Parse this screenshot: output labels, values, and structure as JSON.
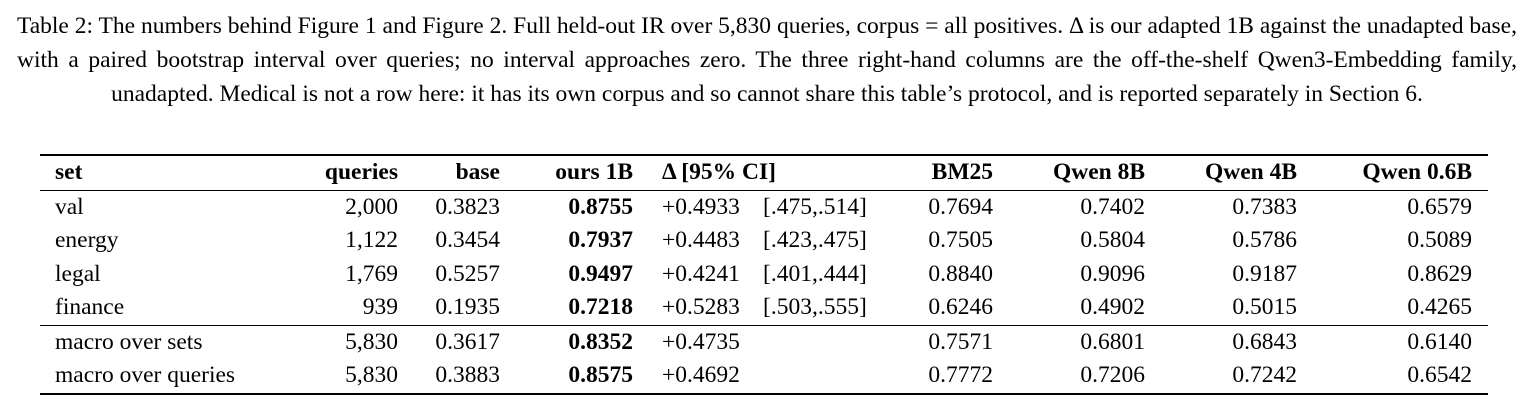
{
  "caption": "Table 2: The numbers behind Figure 1 and Figure 2. Full held-out IR over 5,830 queries, corpus = all positives. Δ is our adapted 1B against the unadapted base, with a paired bootstrap interval over queries; no interval approaches zero. The three right-hand columns are the off-the-shelf Qwen3-Embedding family, unadapted. Medical is not a row here: it has its own corpus and so cannot share this table’s protocol, and is reported separately in Section 6.",
  "table": {
    "header": [
      "set",
      "queries",
      "base",
      "ours 1B",
      "Δ [95% CI]",
      "BM25",
      "Qwen 8B",
      "Qwen 4B",
      "Qwen 0.6B"
    ],
    "groups": [
      [
        {
          "set": "val",
          "queries": "2,000",
          "base": "0.3823",
          "ours": "0.8755",
          "delta": "+0.4933",
          "ci": "[.475,.514]",
          "bm25": "0.7694",
          "qwen8b": "0.7402",
          "qwen4b": "0.7383",
          "qwen06b": "0.6579"
        },
        {
          "set": "energy",
          "queries": "1,122",
          "base": "0.3454",
          "ours": "0.7937",
          "delta": "+0.4483",
          "ci": "[.423,.475]",
          "bm25": "0.7505",
          "qwen8b": "0.5804",
          "qwen4b": "0.5786",
          "qwen06b": "0.5089"
        },
        {
          "set": "legal",
          "queries": "1,769",
          "base": "0.5257",
          "ours": "0.9497",
          "delta": "+0.4241",
          "ci": "[.401,.444]",
          "bm25": "0.8840",
          "qwen8b": "0.9096",
          "qwen4b": "0.9187",
          "qwen06b": "0.8629"
        },
        {
          "set": "finance",
          "queries": "939",
          "base": "0.1935",
          "ours": "0.7218",
          "delta": "+0.5283",
          "ci": "[.503,.555]",
          "bm25": "0.6246",
          "qwen8b": "0.4902",
          "qwen4b": "0.5015",
          "qwen06b": "0.4265"
        }
      ],
      [
        {
          "set": "macro over sets",
          "queries": "5,830",
          "base": "0.3617",
          "ours": "0.8352",
          "delta": "+0.4735",
          "bm25": "0.7571",
          "qwen8b": "0.6801",
          "qwen4b": "0.6843",
          "qwen06b": "0.6140"
        },
        {
          "set": "macro over queries",
          "queries": "5,830",
          "base": "0.3883",
          "ours": "0.8575",
          "delta": "+0.4692",
          "bm25": "0.7772",
          "qwen8b": "0.7206",
          "qwen4b": "0.7242",
          "qwen06b": "0.6542"
        }
      ]
    ]
  }
}
